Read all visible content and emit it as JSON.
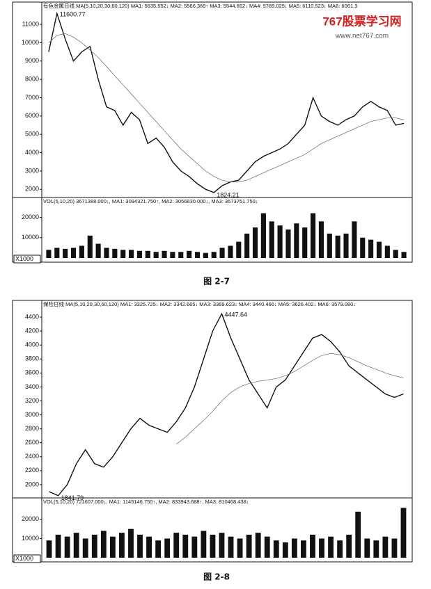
{
  "watermark": {
    "title": "767股票学习网",
    "url": "www.net767.com"
  },
  "captions": [
    "图 2-7",
    "图 2-8"
  ],
  "chart_data": [
    {
      "type": "line",
      "title": "有色金属日线 MA(5,10,20,30,60,120) MA1: 5635.552↓ MA2: 5566.369↑ MA3: 5544.652↓ MA4: 5789.025↓ MA5: 6110.523↓ MA6: 6061.3",
      "annotations": [
        "11600.77",
        "1824.21"
      ],
      "series": [
        {
          "color": "#111111",
          "values": [
            9500,
            11600,
            10200,
            9000,
            9500,
            9800,
            8000,
            6500,
            6300,
            5500,
            6200,
            5800,
            4500,
            4800,
            4300,
            3500,
            3000,
            2700,
            2300,
            2000,
            1824,
            2200,
            2400,
            2500,
            3000,
            3500,
            3800,
            4000,
            4200,
            4500,
            5000,
            5500,
            7000,
            6000,
            5700,
            5500,
            5800,
            6000,
            6500,
            6800,
            6500,
            6300,
            5500,
            5600
          ]
        },
        {
          "color": "#777777",
          "values": [
            10000,
            10400,
            10500,
            10300,
            10000,
            9600,
            9200,
            8700,
            8200,
            7700,
            7200,
            6700,
            6200,
            5700,
            5200,
            4700,
            4200,
            3800,
            3400,
            3000,
            2700,
            2500,
            2400,
            2400,
            2500,
            2700,
            2900,
            3100,
            3300,
            3500,
            3700,
            3900,
            4200,
            4500,
            4700,
            4900,
            5100,
            5300,
            5500,
            5700,
            5800,
            5900,
            5900,
            5800
          ]
        }
      ],
      "ylim": [
        1630,
        11800
      ],
      "yticks": [
        2000,
        3000,
        4000,
        5000,
        6000,
        7000,
        8000,
        9000,
        10000,
        11000
      ]
    },
    {
      "type": "bar",
      "title": "VOL(5,10,20) 3671388.000↓, MA1: 3094321.750↑, MA2: 3056830.000↓, MA3: 3673751.750↓",
      "annotations": [
        "X1000"
      ],
      "color": "#111111",
      "values": [
        4000,
        5000,
        4500,
        5000,
        6000,
        11000,
        7000,
        5000,
        4500,
        4000,
        4000,
        3500,
        3500,
        3000,
        3500,
        3000,
        3000,
        3500,
        3000,
        2500,
        3000,
        5000,
        6000,
        8000,
        12000,
        15000,
        22000,
        18000,
        16000,
        14000,
        17000,
        15000,
        22000,
        18000,
        12000,
        11000,
        12000,
        18000,
        10000,
        9000,
        8000,
        6000,
        4000,
        3000
      ],
      "ylim": [
        0,
        27700
      ],
      "yticks": [
        10000,
        20000
      ]
    },
    {
      "type": "line",
      "title": "保险日线 MA(5,10,20,30,60,120) MA1: 3325.725↓ MA2: 3342.665↓ MA3: 3369.623↓ MA4: 3440.466↓ MA5: 3626.402↓ MA6: 3579.080↓",
      "annotations": [
        "4447.64",
        "1841.79"
      ],
      "series": [
        {
          "color": "#111111",
          "values": [
            1900,
            1842,
            2000,
            2300,
            2500,
            2300,
            2250,
            2400,
            2600,
            2800,
            2950,
            2850,
            2800,
            2750,
            2900,
            3100,
            3400,
            3800,
            4200,
            4448,
            4100,
            3800,
            3500,
            3300,
            3100,
            3400,
            3500,
            3700,
            3900,
            4100,
            4150,
            4050,
            3900,
            3700,
            3600,
            3500,
            3400,
            3300,
            3250,
            3300
          ]
        },
        {
          "color": "#777777",
          "values": [
            null,
            null,
            null,
            null,
            null,
            null,
            null,
            null,
            null,
            null,
            null,
            null,
            null,
            null,
            2580,
            2680,
            2800,
            2920,
            3050,
            3200,
            3320,
            3400,
            3450,
            3480,
            3500,
            3520,
            3560,
            3620,
            3700,
            3780,
            3850,
            3880,
            3860,
            3820,
            3760,
            3700,
            3650,
            3600,
            3560,
            3530
          ]
        }
      ],
      "ylim": [
        1820,
        4520
      ],
      "yticks": [
        2000,
        2200,
        2400,
        2600,
        2800,
        3000,
        3200,
        3400,
        3600,
        3800,
        4000,
        4200,
        4400
      ]
    },
    {
      "type": "bar",
      "title": "VOL(5,10,20) 721607.000↓, MA1: 1145146.750↑, MA2: 833943.688↑, MA3: 810468.438↓",
      "annotations": [
        "X1000"
      ],
      "color": "#111111",
      "values": [
        9000,
        12000,
        11000,
        13000,
        10000,
        12000,
        14000,
        11000,
        13000,
        15000,
        12000,
        11000,
        9000,
        10000,
        13000,
        12000,
        11000,
        14000,
        12000,
        13000,
        11000,
        10000,
        12000,
        13000,
        11000,
        9000,
        8000,
        10000,
        9000,
        12000,
        10000,
        11000,
        9000,
        12000,
        24000,
        10000,
        9000,
        11000,
        10000,
        26000
      ],
      "ylim": [
        0,
        29000
      ],
      "yticks": [
        10000,
        20000
      ]
    }
  ]
}
